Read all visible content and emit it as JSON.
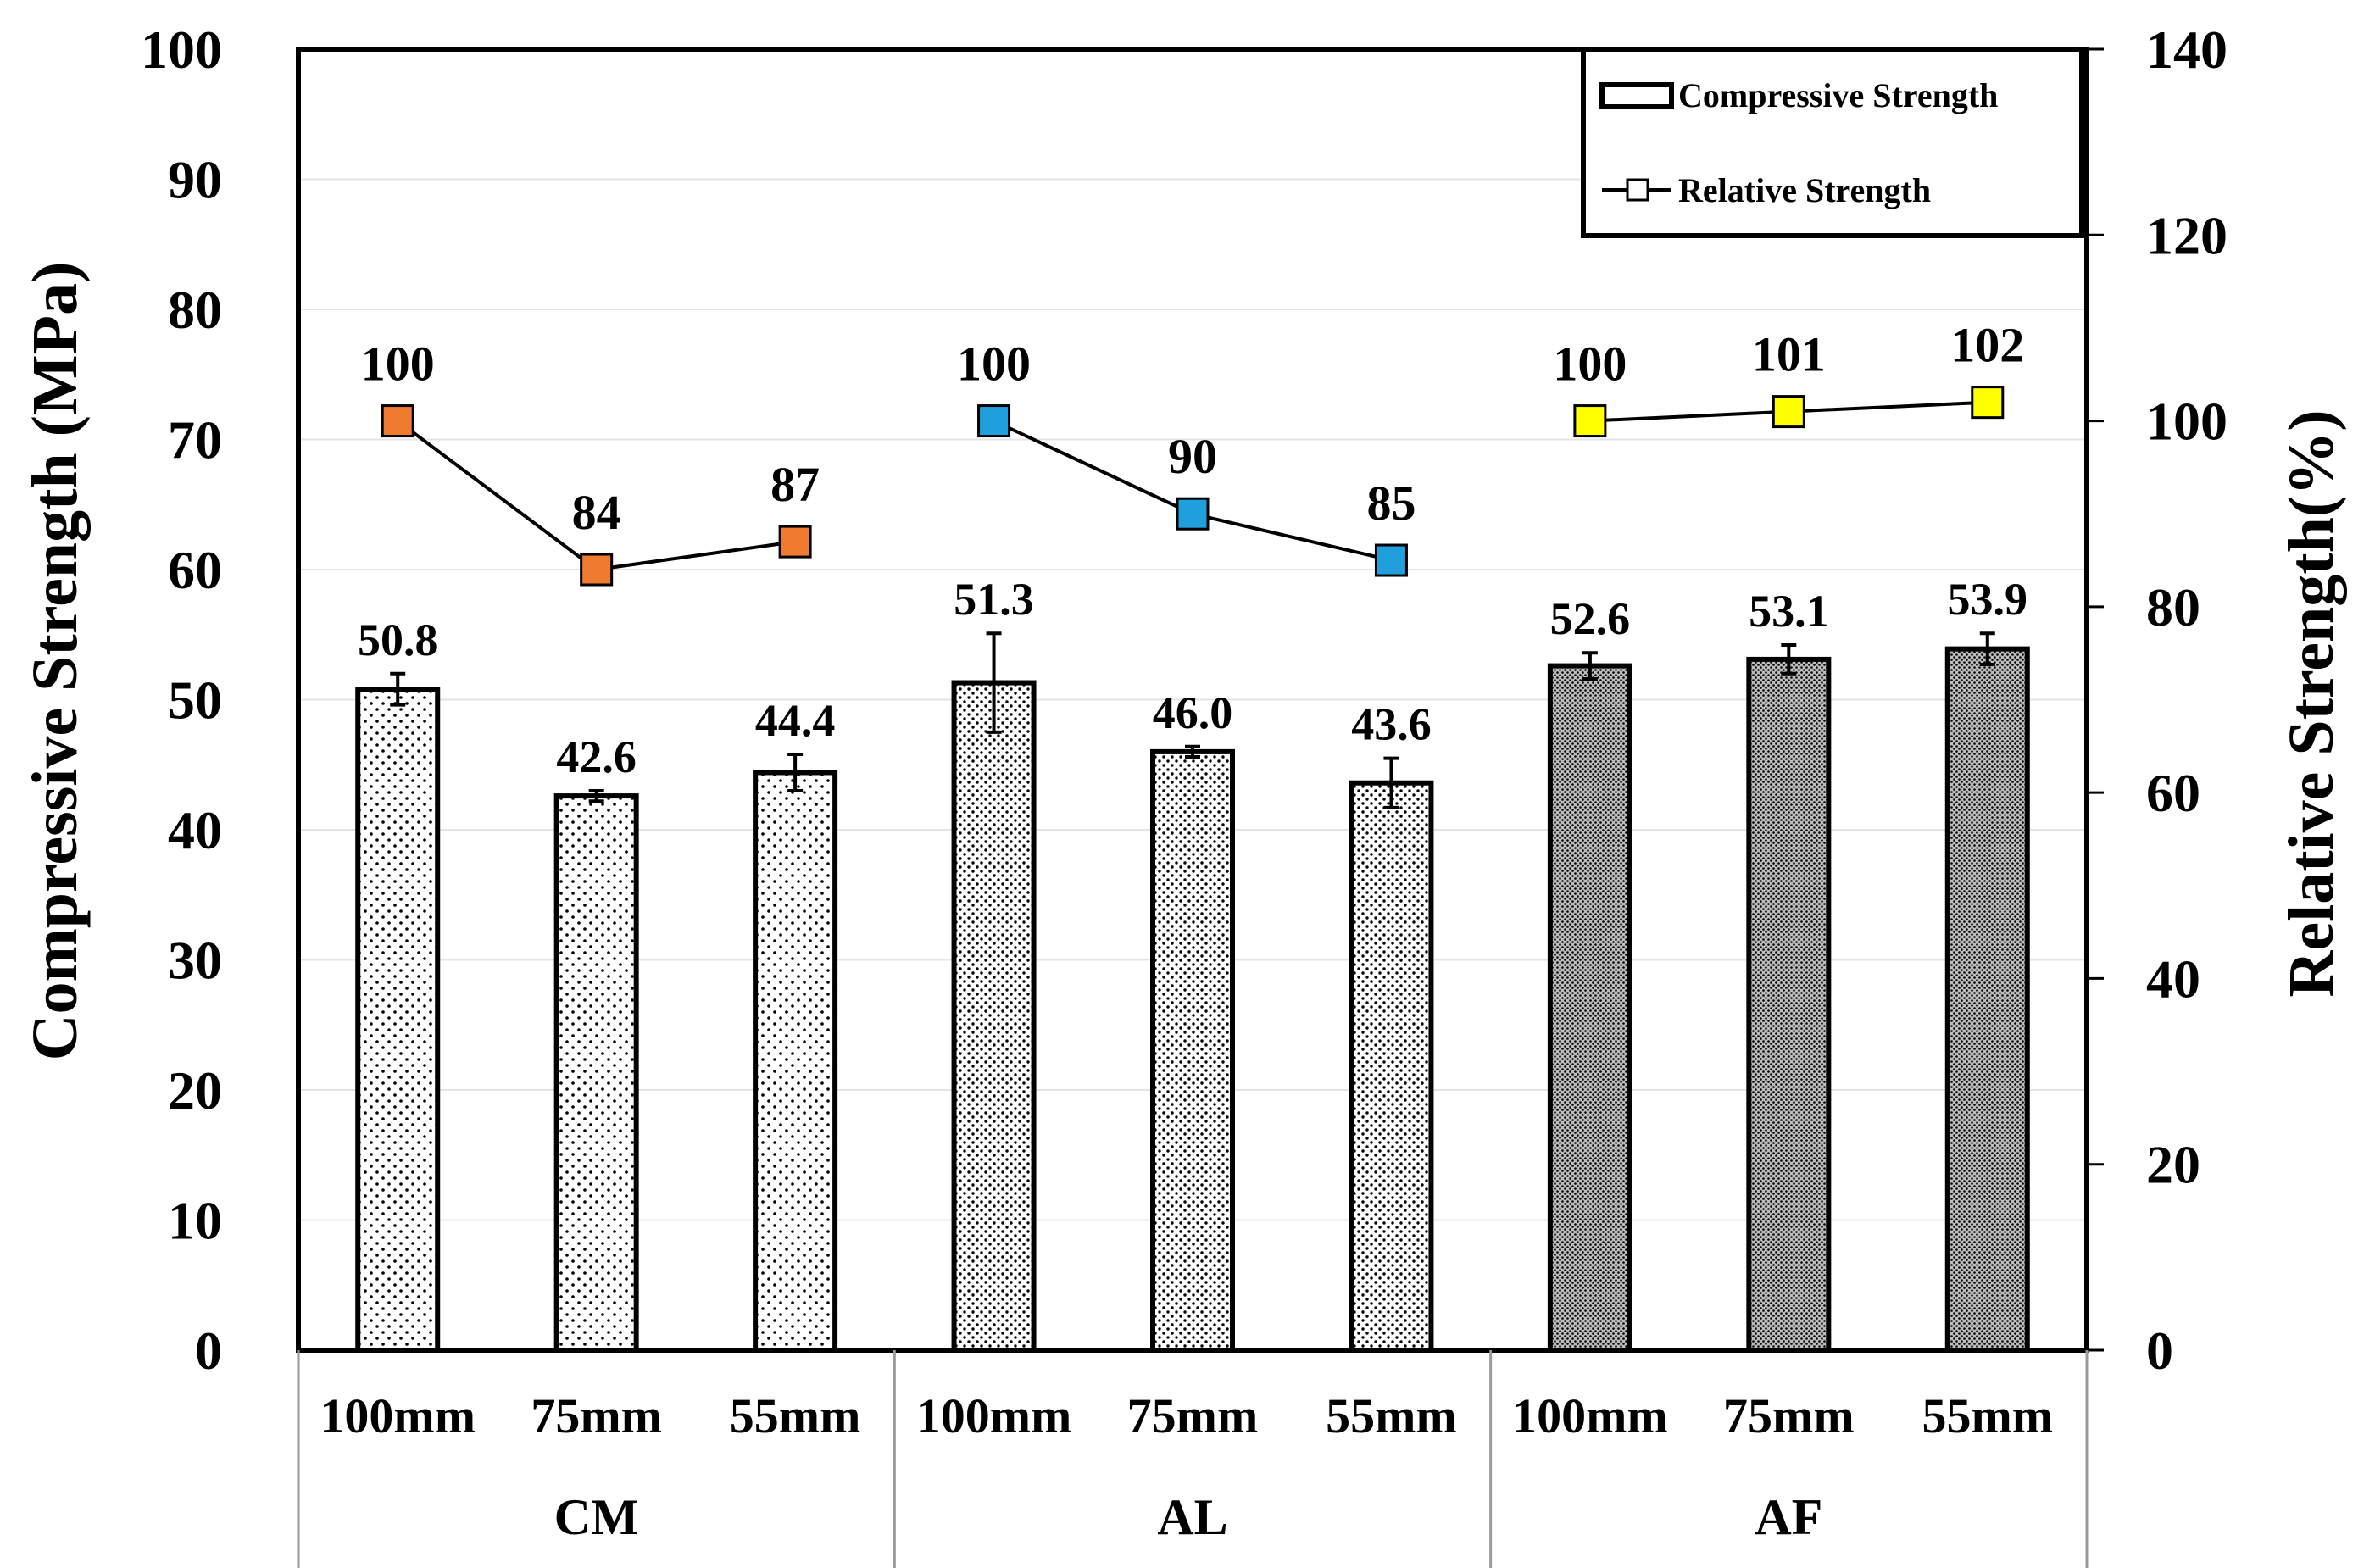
{
  "chart_data": {
    "type": "bar",
    "title": "",
    "ylabel": "Compressive Strength (MPa)",
    "y2label": "Relative Strength(%)",
    "ylim": [
      0,
      100
    ],
    "y2lim": [
      0,
      140
    ],
    "yticks": [
      "0",
      "10",
      "20",
      "30",
      "40",
      "50",
      "60",
      "70",
      "80",
      "90",
      "100"
    ],
    "y2ticks": [
      "0",
      "20",
      "40",
      "60",
      "80",
      "100",
      "120",
      "140"
    ],
    "groups": [
      {
        "name": "CM",
        "categories": [
          "100mm",
          "75mm",
          "55mm"
        ]
      },
      {
        "name": "AL",
        "categories": [
          "100mm",
          "75mm",
          "55mm"
        ]
      },
      {
        "name": "AF",
        "categories": [
          "100mm",
          "75mm",
          "55mm"
        ]
      }
    ],
    "series": [
      {
        "name": "Compressive Strength",
        "type": "bar",
        "axis": "left",
        "values": [
          50.8,
          42.6,
          44.4,
          51.3,
          46.0,
          43.6,
          52.6,
          53.1,
          53.9
        ],
        "labels": [
          "50.8",
          "42.6",
          "44.4",
          "51.3",
          "46.0",
          "43.6",
          "52.6",
          "53.1",
          "53.9"
        ],
        "errors": [
          1.2,
          0.4,
          1.4,
          3.8,
          0.4,
          1.9,
          1.0,
          1.1,
          1.2
        ]
      },
      {
        "name": "Relative Strength",
        "type": "line",
        "axis": "right",
        "values": [
          100,
          84,
          87,
          100,
          90,
          85,
          100,
          101,
          102
        ],
        "labels": [
          "100",
          "84",
          "87",
          "100",
          "90",
          "85",
          "100",
          "101",
          "102"
        ]
      }
    ],
    "group_colors": [
      "#ee7b2f",
      "#1fa0dc",
      "#ffff00"
    ],
    "legend": {
      "position": "top-right",
      "entries": [
        "Compressive Strength",
        "Relative Strength"
      ]
    },
    "grid": true
  }
}
